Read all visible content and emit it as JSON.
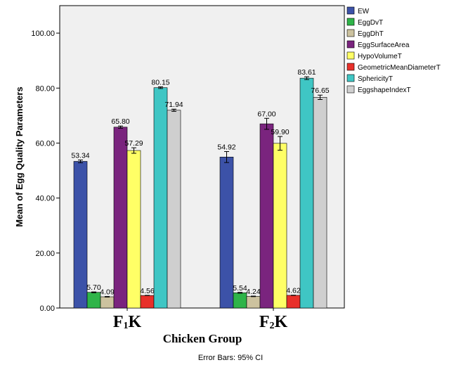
{
  "chart_data": {
    "type": "bar",
    "ylabel": "Mean of Egg Quality Parameters",
    "xlabel": "Chicken Group",
    "ylim": [
      0,
      110
    ],
    "yticks": [
      "0.00",
      "20.00",
      "40.00",
      "60.00",
      "80.00",
      "100.00"
    ],
    "ytick_values": [
      0,
      20,
      40,
      60,
      80,
      100
    ],
    "footnote": "Error Bars: 95% CI",
    "categories": [
      {
        "main": "F",
        "sub": "1",
        "tail": "K"
      },
      {
        "main": "F",
        "sub": "2",
        "tail": "K"
      }
    ],
    "legend_position": "right",
    "series": [
      {
        "name": "EW",
        "color": "#3c52a8",
        "values": [
          53.34,
          54.92
        ],
        "labels": [
          "53.34",
          "54.92"
        ],
        "ci": [
          0.5,
          2.0
        ]
      },
      {
        "name": "EggDvT",
        "color": "#2fb449",
        "values": [
          5.7,
          5.54
        ],
        "labels": [
          "5.70",
          "5.54"
        ],
        "ci": [
          0.15,
          0.15
        ]
      },
      {
        "name": "EggDhT",
        "color": "#ccc29f",
        "values": [
          4.09,
          4.24
        ],
        "labels": [
          "4.09",
          "4.24"
        ],
        "ci": [
          0.1,
          0.1
        ]
      },
      {
        "name": "EggSurfaceArea",
        "color": "#7a247e",
        "values": [
          65.8,
          67.0
        ],
        "labels": [
          "65.80",
          "67.00"
        ],
        "ci": [
          0.4,
          2.0
        ]
      },
      {
        "name": "HypoVolumeT",
        "color": "#ffff66",
        "values": [
          57.29,
          59.9
        ],
        "labels": [
          "57.29",
          "59.90"
        ],
        "ci": [
          1.0,
          2.5
        ]
      },
      {
        "name": "GeometricMeanDiameterT",
        "color": "#e8302a",
        "values": [
          4.56,
          4.62
        ],
        "labels": [
          "4.56",
          "4.62"
        ],
        "ci": [
          0.05,
          0.05
        ]
      },
      {
        "name": "SphericityT",
        "color": "#3fc6c4",
        "values": [
          80.15,
          83.61
        ],
        "labels": [
          "80.15",
          "83.61"
        ],
        "ci": [
          0.3,
          0.5
        ]
      },
      {
        "name": "EggshapeIndexT",
        "color": "#cfcfcf",
        "values": [
          71.94,
          76.65
        ],
        "labels": [
          "71.94",
          "76.65"
        ],
        "ci": [
          0.4,
          0.8
        ]
      }
    ]
  }
}
